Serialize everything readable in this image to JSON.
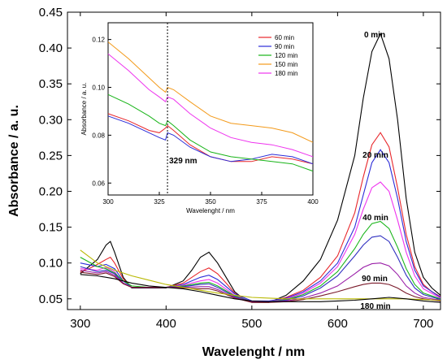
{
  "chart_data": [
    {
      "type": "line",
      "xlabel": "Wavelenght / nm",
      "ylabel": "Absorbance / a. u.",
      "xlim": [
        285,
        720
      ],
      "ylim": [
        0.035,
        0.45
      ],
      "xticks": [
        300,
        400,
        500,
        600,
        700
      ],
      "yticks": [
        "0.05",
        "0.10",
        "0.15",
        "0.20",
        "0.25",
        "0.30",
        "0.35",
        "0.40",
        "0.45"
      ],
      "grid": false,
      "annotations": [
        "0 min",
        "20 min",
        "40 min",
        "90 min",
        "180 min"
      ],
      "series": [
        {
          "color": "#000000",
          "x": [
            300,
            310,
            320,
            330,
            335,
            340,
            350,
            360,
            380,
            400,
            420,
            430,
            440,
            450,
            460,
            470,
            480,
            490,
            500,
            520,
            540,
            560,
            580,
            600,
            620,
            630,
            640,
            650,
            660,
            670,
            680,
            690,
            700,
            710,
            720
          ],
          "y": [
            0.085,
            0.095,
            0.105,
            0.125,
            0.13,
            0.115,
            0.08,
            0.065,
            0.065,
            0.065,
            0.075,
            0.09,
            0.108,
            0.115,
            0.1,
            0.08,
            0.06,
            0.05,
            0.045,
            0.045,
            0.055,
            0.075,
            0.105,
            0.16,
            0.25,
            0.33,
            0.395,
            0.42,
            0.385,
            0.3,
            0.19,
            0.115,
            0.08,
            0.065,
            0.055
          ]
        },
        {
          "color": "#e8262b",
          "x": [
            300,
            310,
            320,
            330,
            335,
            340,
            350,
            360,
            380,
            400,
            420,
            440,
            450,
            460,
            470,
            480,
            490,
            500,
            520,
            540,
            560,
            580,
            600,
            620,
            630,
            640,
            650,
            660,
            670,
            680,
            690,
            700,
            710,
            720
          ],
          "y": [
            0.088,
            0.092,
            0.098,
            0.105,
            0.108,
            0.1,
            0.078,
            0.066,
            0.066,
            0.066,
            0.072,
            0.088,
            0.093,
            0.085,
            0.072,
            0.058,
            0.05,
            0.046,
            0.046,
            0.052,
            0.062,
            0.08,
            0.11,
            0.17,
            0.22,
            0.265,
            0.282,
            0.262,
            0.205,
            0.14,
            0.095,
            0.07,
            0.06,
            0.053
          ]
        },
        {
          "color": "#2b2bd8",
          "x": [
            300,
            320,
            330,
            340,
            350,
            360,
            380,
            400,
            420,
            440,
            450,
            460,
            480,
            500,
            520,
            540,
            560,
            580,
            600,
            620,
            630,
            640,
            650,
            660,
            670,
            680,
            690,
            700,
            720
          ],
          "y": [
            0.1,
            0.095,
            0.098,
            0.092,
            0.075,
            0.066,
            0.066,
            0.066,
            0.07,
            0.08,
            0.083,
            0.077,
            0.057,
            0.047,
            0.047,
            0.051,
            0.06,
            0.075,
            0.1,
            0.15,
            0.195,
            0.24,
            0.258,
            0.24,
            0.19,
            0.13,
            0.09,
            0.068,
            0.052
          ]
        },
        {
          "color": "#ee33ee",
          "x": [
            300,
            320,
            330,
            340,
            350,
            360,
            380,
            400,
            420,
            440,
            450,
            460,
            480,
            500,
            520,
            540,
            560,
            580,
            600,
            620,
            630,
            640,
            650,
            660,
            670,
            680,
            690,
            700,
            720
          ],
          "y": [
            0.092,
            0.09,
            0.094,
            0.088,
            0.072,
            0.066,
            0.066,
            0.066,
            0.069,
            0.075,
            0.077,
            0.072,
            0.055,
            0.046,
            0.046,
            0.05,
            0.058,
            0.072,
            0.095,
            0.14,
            0.175,
            0.205,
            0.213,
            0.2,
            0.16,
            0.115,
            0.082,
            0.064,
            0.051
          ]
        },
        {
          "color": "#18b418",
          "x": [
            300,
            320,
            330,
            340,
            350,
            360,
            380,
            400,
            420,
            440,
            450,
            460,
            480,
            500,
            520,
            540,
            560,
            580,
            600,
            620,
            630,
            640,
            650,
            660,
            670,
            680,
            690,
            700,
            720
          ],
          "y": [
            0.108,
            0.095,
            0.092,
            0.086,
            0.075,
            0.068,
            0.066,
            0.066,
            0.068,
            0.072,
            0.073,
            0.068,
            0.054,
            0.046,
            0.046,
            0.049,
            0.056,
            0.068,
            0.088,
            0.12,
            0.14,
            0.155,
            0.158,
            0.148,
            0.122,
            0.092,
            0.07,
            0.058,
            0.05
          ]
        },
        {
          "color": "#3030c0",
          "x": [
            300,
            320,
            330,
            340,
            350,
            360,
            380,
            400,
            420,
            440,
            450,
            460,
            480,
            500,
            520,
            540,
            560,
            580,
            600,
            620,
            630,
            640,
            650,
            660,
            670,
            680,
            690,
            700,
            720
          ],
          "y": [
            0.095,
            0.088,
            0.09,
            0.085,
            0.072,
            0.066,
            0.066,
            0.066,
            0.067,
            0.07,
            0.071,
            0.066,
            0.053,
            0.046,
            0.046,
            0.048,
            0.054,
            0.065,
            0.082,
            0.11,
            0.125,
            0.136,
            0.138,
            0.13,
            0.108,
            0.083,
            0.065,
            0.056,
            0.049
          ]
        },
        {
          "color": "#9a1fa8",
          "x": [
            300,
            320,
            330,
            340,
            350,
            360,
            380,
            400,
            420,
            440,
            450,
            460,
            480,
            500,
            520,
            540,
            560,
            580,
            600,
            620,
            630,
            640,
            650,
            660,
            670,
            680,
            690,
            700,
            720
          ],
          "y": [
            0.09,
            0.086,
            0.088,
            0.083,
            0.072,
            0.066,
            0.066,
            0.066,
            0.066,
            0.067,
            0.067,
            0.063,
            0.052,
            0.046,
            0.046,
            0.047,
            0.051,
            0.058,
            0.068,
            0.085,
            0.094,
            0.099,
            0.1,
            0.096,
            0.084,
            0.068,
            0.058,
            0.052,
            0.048
          ]
        },
        {
          "color": "#7a1a2a",
          "x": [
            300,
            320,
            330,
            340,
            350,
            360,
            380,
            400,
            420,
            440,
            450,
            460,
            480,
            500,
            520,
            540,
            560,
            580,
            600,
            620,
            630,
            640,
            650,
            660,
            670,
            680,
            690,
            700,
            720
          ],
          "y": [
            0.087,
            0.084,
            0.086,
            0.081,
            0.071,
            0.066,
            0.066,
            0.066,
            0.065,
            0.064,
            0.064,
            0.061,
            0.051,
            0.045,
            0.045,
            0.046,
            0.049,
            0.054,
            0.06,
            0.067,
            0.07,
            0.072,
            0.072,
            0.07,
            0.065,
            0.058,
            0.053,
            0.05,
            0.047
          ]
        },
        {
          "color": "#b8b800",
          "x": [
            300,
            320,
            340,
            360,
            380,
            400,
            420,
            440,
            460,
            480,
            500,
            520,
            540,
            560,
            580,
            600,
            620,
            640,
            660,
            680,
            700,
            720
          ],
          "y": [
            0.118,
            0.1,
            0.09,
            0.082,
            0.076,
            0.07,
            0.066,
            0.062,
            0.058,
            0.055,
            0.052,
            0.051,
            0.05,
            0.05,
            0.05,
            0.05,
            0.05,
            0.05,
            0.05,
            0.05,
            0.049,
            0.048
          ]
        },
        {
          "color": "#000000",
          "x": [
            300,
            320,
            340,
            360,
            380,
            400,
            420,
            440,
            460,
            480,
            500,
            520,
            540,
            560,
            580,
            600,
            620,
            640,
            660,
            680,
            700,
            720
          ],
          "y": [
            0.084,
            0.082,
            0.078,
            0.072,
            0.068,
            0.066,
            0.064,
            0.06,
            0.055,
            0.05,
            0.047,
            0.046,
            0.046,
            0.046,
            0.046,
            0.047,
            0.048,
            0.05,
            0.052,
            0.05,
            0.047,
            0.045
          ]
        }
      ]
    },
    {
      "type": "line",
      "inset": true,
      "xlabel": "Wavelenght / nm",
      "ylabel": "Absorbance / a. u.",
      "xlim": [
        300,
        400
      ],
      "ylim": [
        0.055,
        0.127
      ],
      "xticks": [
        300,
        325,
        350,
        375,
        400
      ],
      "yticks": [
        "0.06",
        "0.08",
        "0.10",
        "0.12"
      ],
      "marker_x": 329,
      "marker_label": "329 nm",
      "legend_position": "top-right",
      "series": [
        {
          "name": "60 min",
          "color": "#e8262b",
          "x": [
            300,
            310,
            320,
            325,
            328,
            329,
            332,
            340,
            350,
            360,
            370,
            380,
            390,
            400
          ],
          "y": [
            0.089,
            0.086,
            0.082,
            0.081,
            0.083,
            0.084,
            0.082,
            0.076,
            0.071,
            0.069,
            0.069,
            0.071,
            0.07,
            0.068
          ]
        },
        {
          "name": "90 min",
          "color": "#2b2bd8",
          "x": [
            300,
            310,
            320,
            325,
            328,
            329,
            332,
            340,
            350,
            360,
            370,
            380,
            390,
            400
          ],
          "y": [
            0.088,
            0.085,
            0.081,
            0.079,
            0.078,
            0.081,
            0.08,
            0.075,
            0.071,
            0.069,
            0.07,
            0.072,
            0.071,
            0.068
          ]
        },
        {
          "name": "120 min",
          "color": "#18b418",
          "x": [
            300,
            310,
            320,
            325,
            328,
            329,
            332,
            340,
            350,
            360,
            370,
            380,
            390,
            400
          ],
          "y": [
            0.097,
            0.093,
            0.088,
            0.085,
            0.084,
            0.086,
            0.084,
            0.078,
            0.073,
            0.071,
            0.07,
            0.069,
            0.068,
            0.065
          ]
        },
        {
          "name": "150 min",
          "color": "#f39a1a",
          "x": [
            300,
            310,
            320,
            325,
            328,
            329,
            332,
            340,
            350,
            360,
            370,
            380,
            390,
            400
          ],
          "y": [
            0.119,
            0.112,
            0.104,
            0.1,
            0.098,
            0.1,
            0.099,
            0.094,
            0.088,
            0.085,
            0.084,
            0.083,
            0.081,
            0.077
          ]
        },
        {
          "name": "180 min",
          "color": "#ee33ee",
          "x": [
            300,
            310,
            320,
            325,
            328,
            329,
            332,
            340,
            350,
            360,
            370,
            380,
            390,
            400
          ],
          "y": [
            0.114,
            0.107,
            0.099,
            0.096,
            0.094,
            0.096,
            0.095,
            0.089,
            0.083,
            0.079,
            0.077,
            0.076,
            0.074,
            0.071
          ]
        }
      ]
    }
  ]
}
